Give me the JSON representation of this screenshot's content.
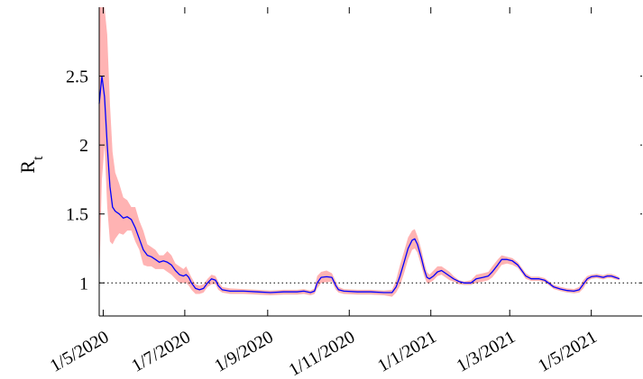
{
  "chart_data": {
    "type": "line",
    "ylabel_main": "R",
    "ylabel_sub": "t",
    "xlabel": "",
    "x_unit": "day index from first x tick (1/5/2020)",
    "x_ticks": [
      {
        "label": "1/5/2020",
        "x": 0
      },
      {
        "label": "1/7/2020",
        "x": 61
      },
      {
        "label": "1/9/2020",
        "x": 123
      },
      {
        "label": "1/11/2020",
        "x": 184
      },
      {
        "label": "1/1/2021",
        "x": 245
      },
      {
        "label": "1/3/2021",
        "x": 304
      },
      {
        "label": "1/5/2021",
        "x": 365
      }
    ],
    "y_ticks": [
      {
        "label": "1",
        "value": 1.0
      },
      {
        "label": "1.5",
        "value": 1.5
      },
      {
        "label": "2",
        "value": 2.0
      },
      {
        "label": "2.5",
        "value": 2.5
      }
    ],
    "xlim": [
      -3,
      403
    ],
    "ylim": [
      0.76,
      3.0
    ],
    "reference_line": {
      "value": 1.0,
      "style": "dotted"
    },
    "grid": false,
    "colors": {
      "line": "#0000ff",
      "band": "#ffb3b3",
      "reference": "#000000"
    },
    "series": [
      {
        "kind": "estimate",
        "points": [
          [
            -3,
            2.3
          ],
          [
            -1,
            2.5
          ],
          [
            1,
            2.35
          ],
          [
            3,
            2.0
          ],
          [
            5,
            1.7
          ],
          [
            7,
            1.55
          ],
          [
            9,
            1.52
          ],
          [
            12,
            1.5
          ],
          [
            15,
            1.47
          ],
          [
            18,
            1.48
          ],
          [
            21,
            1.46
          ],
          [
            24,
            1.4
          ],
          [
            27,
            1.32
          ],
          [
            30,
            1.24
          ],
          [
            33,
            1.2
          ],
          [
            36,
            1.19
          ],
          [
            39,
            1.17
          ],
          [
            42,
            1.15
          ],
          [
            45,
            1.16
          ],
          [
            48,
            1.15
          ],
          [
            51,
            1.13
          ],
          [
            54,
            1.09
          ],
          [
            57,
            1.06
          ],
          [
            60,
            1.05
          ],
          [
            62,
            1.06
          ],
          [
            64,
            1.04
          ],
          [
            66,
            1.0
          ],
          [
            69,
            0.96
          ],
          [
            72,
            0.95
          ],
          [
            75,
            0.96
          ],
          [
            78,
            1.0
          ],
          [
            81,
            1.03
          ],
          [
            84,
            1.02
          ],
          [
            86,
            0.98
          ],
          [
            89,
            0.95
          ],
          [
            95,
            0.94
          ],
          [
            105,
            0.94
          ],
          [
            115,
            0.935
          ],
          [
            125,
            0.93
          ],
          [
            135,
            0.935
          ],
          [
            145,
            0.935
          ],
          [
            150,
            0.94
          ],
          [
            155,
            0.93
          ],
          [
            158,
            0.94
          ],
          [
            160,
            1.0
          ],
          [
            163,
            1.04
          ],
          [
            167,
            1.045
          ],
          [
            171,
            1.04
          ],
          [
            174,
            0.98
          ],
          [
            176,
            0.95
          ],
          [
            180,
            0.94
          ],
          [
            190,
            0.935
          ],
          [
            200,
            0.935
          ],
          [
            210,
            0.93
          ],
          [
            216,
            0.93
          ],
          [
            219,
            0.97
          ],
          [
            222,
            1.05
          ],
          [
            225,
            1.15
          ],
          [
            228,
            1.25
          ],
          [
            231,
            1.31
          ],
          [
            233,
            1.32
          ],
          [
            235,
            1.28
          ],
          [
            238,
            1.18
          ],
          [
            240,
            1.1
          ],
          [
            242,
            1.04
          ],
          [
            244,
            1.03
          ],
          [
            247,
            1.05
          ],
          [
            250,
            1.08
          ],
          [
            253,
            1.09
          ],
          [
            256,
            1.07
          ],
          [
            259,
            1.05
          ],
          [
            262,
            1.03
          ],
          [
            266,
            1.01
          ],
          [
            270,
            1.0
          ],
          [
            275,
            1.0
          ],
          [
            279,
            1.03
          ],
          [
            284,
            1.04
          ],
          [
            288,
            1.05
          ],
          [
            291,
            1.08
          ],
          [
            295,
            1.13
          ],
          [
            298,
            1.17
          ],
          [
            302,
            1.17
          ],
          [
            306,
            1.16
          ],
          [
            310,
            1.13
          ],
          [
            313,
            1.09
          ],
          [
            316,
            1.05
          ],
          [
            320,
            1.03
          ],
          [
            326,
            1.03
          ],
          [
            330,
            1.02
          ],
          [
            333,
            1.0
          ],
          [
            337,
            0.97
          ],
          [
            342,
            0.955
          ],
          [
            347,
            0.945
          ],
          [
            352,
            0.94
          ],
          [
            356,
            0.95
          ],
          [
            359,
            0.99
          ],
          [
            362,
            1.03
          ],
          [
            365,
            1.045
          ],
          [
            369,
            1.05
          ],
          [
            374,
            1.04
          ],
          [
            377,
            1.05
          ],
          [
            380,
            1.05
          ],
          [
            383,
            1.04
          ],
          [
            386,
            1.03
          ]
        ],
        "upper": [
          [
            -3,
            3.0
          ],
          [
            -1,
            3.0
          ],
          [
            1,
            3.0
          ],
          [
            3,
            2.8
          ],
          [
            5,
            2.3
          ],
          [
            7,
            1.95
          ],
          [
            9,
            1.8
          ],
          [
            12,
            1.72
          ],
          [
            15,
            1.62
          ],
          [
            18,
            1.6
          ],
          [
            21,
            1.55
          ],
          [
            24,
            1.55
          ],
          [
            27,
            1.45
          ],
          [
            30,
            1.38
          ],
          [
            33,
            1.28
          ],
          [
            36,
            1.26
          ],
          [
            39,
            1.24
          ],
          [
            42,
            1.2
          ],
          [
            45,
            1.2
          ],
          [
            48,
            1.23
          ],
          [
            51,
            1.2
          ],
          [
            54,
            1.14
          ],
          [
            57,
            1.12
          ],
          [
            60,
            1.1
          ],
          [
            62,
            1.12
          ],
          [
            64,
            1.08
          ],
          [
            66,
            1.04
          ],
          [
            69,
            0.99
          ],
          [
            72,
            0.98
          ],
          [
            75,
            0.99
          ],
          [
            78,
            1.03
          ],
          [
            81,
            1.06
          ],
          [
            84,
            1.05
          ],
          [
            86,
            1.01
          ],
          [
            89,
            0.97
          ],
          [
            95,
            0.96
          ],
          [
            105,
            0.955
          ],
          [
            115,
            0.95
          ],
          [
            125,
            0.945
          ],
          [
            135,
            0.95
          ],
          [
            145,
            0.95
          ],
          [
            150,
            0.955
          ],
          [
            155,
            0.945
          ],
          [
            158,
            0.96
          ],
          [
            160,
            1.05
          ],
          [
            163,
            1.08
          ],
          [
            167,
            1.09
          ],
          [
            171,
            1.07
          ],
          [
            174,
            1.01
          ],
          [
            176,
            0.97
          ],
          [
            180,
            0.955
          ],
          [
            190,
            0.95
          ],
          [
            200,
            0.95
          ],
          [
            210,
            0.945
          ],
          [
            216,
            0.95
          ],
          [
            219,
            1.02
          ],
          [
            222,
            1.13
          ],
          [
            225,
            1.23
          ],
          [
            228,
            1.33
          ],
          [
            231,
            1.38
          ],
          [
            233,
            1.39
          ],
          [
            235,
            1.34
          ],
          [
            238,
            1.24
          ],
          [
            240,
            1.15
          ],
          [
            242,
            1.08
          ],
          [
            244,
            1.06
          ],
          [
            247,
            1.09
          ],
          [
            250,
            1.12
          ],
          [
            253,
            1.12
          ],
          [
            256,
            1.1
          ],
          [
            259,
            1.08
          ],
          [
            262,
            1.05
          ],
          [
            266,
            1.02
          ],
          [
            270,
            1.01
          ],
          [
            275,
            1.02
          ],
          [
            279,
            1.06
          ],
          [
            284,
            1.07
          ],
          [
            288,
            1.08
          ],
          [
            291,
            1.12
          ],
          [
            295,
            1.17
          ],
          [
            298,
            1.2
          ],
          [
            302,
            1.19
          ],
          [
            306,
            1.18
          ],
          [
            310,
            1.15
          ],
          [
            313,
            1.11
          ],
          [
            316,
            1.07
          ],
          [
            320,
            1.045
          ],
          [
            326,
            1.045
          ],
          [
            330,
            1.035
          ],
          [
            333,
            1.015
          ],
          [
            337,
            0.985
          ],
          [
            342,
            0.97
          ],
          [
            347,
            0.96
          ],
          [
            352,
            0.955
          ],
          [
            356,
            0.97
          ],
          [
            359,
            1.02
          ],
          [
            362,
            1.05
          ],
          [
            365,
            1.06
          ],
          [
            369,
            1.065
          ],
          [
            374,
            1.055
          ],
          [
            377,
            1.065
          ],
          [
            380,
            1.065
          ],
          [
            383,
            1.055
          ],
          [
            386,
            1.04
          ]
        ],
        "lower": [
          [
            -3,
            1.0
          ],
          [
            -1,
            1.75
          ],
          [
            1,
            2.0
          ],
          [
            3,
            1.55
          ],
          [
            5,
            1.3
          ],
          [
            7,
            1.28
          ],
          [
            9,
            1.32
          ],
          [
            12,
            1.36
          ],
          [
            15,
            1.35
          ],
          [
            18,
            1.38
          ],
          [
            21,
            1.38
          ],
          [
            24,
            1.3
          ],
          [
            27,
            1.24
          ],
          [
            30,
            1.13
          ],
          [
            33,
            1.12
          ],
          [
            36,
            1.12
          ],
          [
            39,
            1.1
          ],
          [
            42,
            1.1
          ],
          [
            45,
            1.1
          ],
          [
            48,
            1.08
          ],
          [
            51,
            1.06
          ],
          [
            54,
            1.03
          ],
          [
            57,
            1.0
          ],
          [
            60,
            1.0
          ],
          [
            62,
            1.0
          ],
          [
            64,
            0.98
          ],
          [
            66,
            0.95
          ],
          [
            69,
            0.92
          ],
          [
            72,
            0.92
          ],
          [
            75,
            0.93
          ],
          [
            78,
            0.97
          ],
          [
            81,
            0.99
          ],
          [
            84,
            0.99
          ],
          [
            86,
            0.95
          ],
          [
            89,
            0.93
          ],
          [
            95,
            0.92
          ],
          [
            105,
            0.92
          ],
          [
            115,
            0.915
          ],
          [
            125,
            0.91
          ],
          [
            135,
            0.915
          ],
          [
            145,
            0.915
          ],
          [
            150,
            0.92
          ],
          [
            155,
            0.91
          ],
          [
            158,
            0.92
          ],
          [
            160,
            0.96
          ],
          [
            163,
            1.0
          ],
          [
            167,
            1.005
          ],
          [
            171,
            1.01
          ],
          [
            174,
            0.95
          ],
          [
            176,
            0.93
          ],
          [
            180,
            0.92
          ],
          [
            190,
            0.915
          ],
          [
            200,
            0.915
          ],
          [
            210,
            0.91
          ],
          [
            216,
            0.9
          ],
          [
            219,
            0.93
          ],
          [
            222,
            0.98
          ],
          [
            225,
            1.07
          ],
          [
            228,
            1.17
          ],
          [
            231,
            1.24
          ],
          [
            233,
            1.25
          ],
          [
            235,
            1.22
          ],
          [
            238,
            1.12
          ],
          [
            240,
            1.05
          ],
          [
            242,
            1.0
          ],
          [
            244,
            1.0
          ],
          [
            247,
            1.02
          ],
          [
            250,
            1.05
          ],
          [
            253,
            1.06
          ],
          [
            256,
            1.04
          ],
          [
            259,
            1.02
          ],
          [
            262,
            1.01
          ],
          [
            266,
            0.99
          ],
          [
            270,
            0.985
          ],
          [
            275,
            0.985
          ],
          [
            279,
            1.0
          ],
          [
            284,
            1.01
          ],
          [
            288,
            1.02
          ],
          [
            291,
            1.04
          ],
          [
            295,
            1.09
          ],
          [
            298,
            1.13
          ],
          [
            302,
            1.14
          ],
          [
            306,
            1.13
          ],
          [
            310,
            1.11
          ],
          [
            313,
            1.07
          ],
          [
            316,
            1.03
          ],
          [
            320,
            1.015
          ],
          [
            326,
            1.015
          ],
          [
            330,
            1.005
          ],
          [
            333,
            0.985
          ],
          [
            337,
            0.955
          ],
          [
            342,
            0.94
          ],
          [
            347,
            0.93
          ],
          [
            352,
            0.925
          ],
          [
            356,
            0.93
          ],
          [
            359,
            0.96
          ],
          [
            362,
            1.01
          ],
          [
            365,
            1.03
          ],
          [
            369,
            1.035
          ],
          [
            374,
            1.025
          ],
          [
            377,
            1.035
          ],
          [
            380,
            1.035
          ],
          [
            383,
            1.025
          ],
          [
            386,
            1.02
          ]
        ]
      }
    ]
  }
}
